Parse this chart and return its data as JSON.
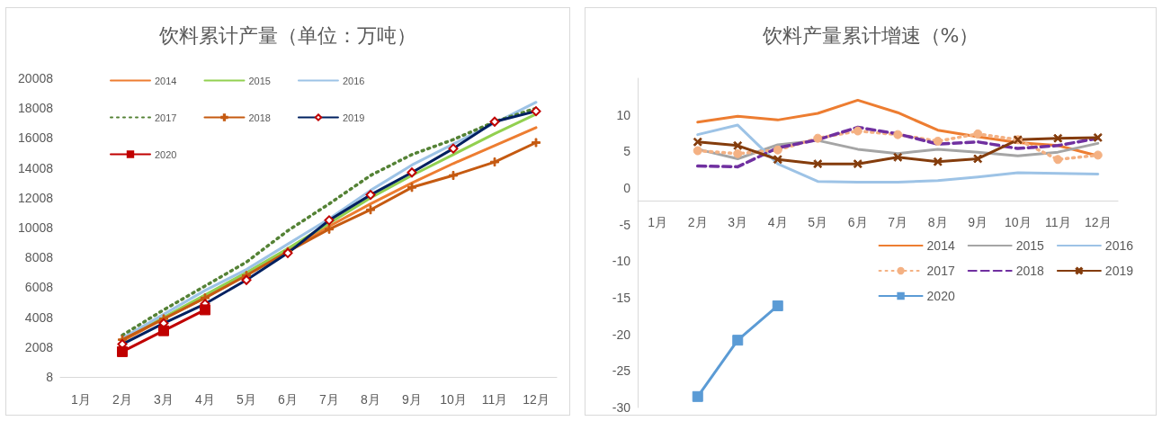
{
  "chart_data": [
    {
      "type": "line",
      "title": "饮料累计产量（单位：万吨）",
      "categories": [
        "1月",
        "2月",
        "3月",
        "4月",
        "5月",
        "6月",
        "7月",
        "8月",
        "9月",
        "10月",
        "11月",
        "12月"
      ],
      "ylim": [
        8,
        20008
      ],
      "yticks": [
        8,
        2008,
        4008,
        6008,
        8008,
        10008,
        12008,
        14008,
        16008,
        18008,
        20008
      ],
      "grid": false,
      "legend": "top left",
      "series": [
        {
          "name": "2014",
          "color": "#ed7d31",
          "marker": "none",
          "line_style": "solid",
          "values": [
            null,
            2400,
            3900,
            5300,
            6900,
            8500,
            10100,
            11600,
            13000,
            14300,
            15500,
            16700
          ]
        },
        {
          "name": "2015",
          "color": "#92d050",
          "marker": "none",
          "line_style": "solid",
          "values": [
            null,
            2500,
            4000,
            5500,
            7000,
            8600,
            10300,
            12000,
            13500,
            14900,
            16300,
            17600
          ]
        },
        {
          "name": "2016",
          "color": "#9dc3e6",
          "marker": "none",
          "line_style": "solid",
          "values": [
            null,
            2600,
            4200,
            5800,
            7200,
            8900,
            10600,
            12500,
            14200,
            15600,
            17000,
            18400
          ]
        },
        {
          "name": "2017",
          "color": "#548235",
          "marker": "none",
          "line_style": "dotted",
          "values": [
            null,
            2800,
            4500,
            6100,
            7700,
            9800,
            11600,
            13500,
            14900,
            15900,
            17100,
            18000
          ]
        },
        {
          "name": "2018",
          "color": "#c55a11",
          "marker": "cross",
          "line_style": "solid",
          "values": [
            null,
            2500,
            3900,
            5300,
            6800,
            8400,
            9900,
            11200,
            12700,
            13500,
            14400,
            15700
          ]
        },
        {
          "name": "2019",
          "color": "#002060",
          "marker": "diamond",
          "line_style": "solid",
          "values": [
            null,
            2200,
            3600,
            4900,
            6500,
            8300,
            10500,
            12200,
            13700,
            15300,
            17100,
            17800
          ]
        },
        {
          "name": "2020",
          "color": "#c00000",
          "marker": "square",
          "line_style": "solid",
          "values": [
            null,
            1700,
            3100,
            4500,
            null,
            null,
            null,
            null,
            null,
            null,
            null,
            null
          ]
        }
      ]
    },
    {
      "type": "line",
      "title": "饮料产量累计增速（%）",
      "categories": [
        "1月",
        "2月",
        "3月",
        "4月",
        "5月",
        "6月",
        "7月",
        "8月",
        "9月",
        "10月",
        "11月",
        "12月"
      ],
      "ylim": [
        -30,
        15
      ],
      "yticks": [
        -30,
        -25,
        -20,
        -15,
        -10,
        -5,
        0,
        5,
        10
      ],
      "grid": false,
      "legend": "bottom right",
      "series": [
        {
          "name": "2014",
          "color": "#ed7d31",
          "marker": "none",
          "line_style": "solid",
          "values": [
            null,
            9.0,
            9.8,
            9.3,
            10.2,
            12.0,
            10.3,
            7.9,
            7.0,
            6.2,
            5.8,
            4.4
          ]
        },
        {
          "name": "2015",
          "color": "#a5a5a5",
          "marker": "none",
          "line_style": "solid",
          "values": [
            null,
            5.3,
            4.0,
            5.9,
            6.5,
            5.3,
            4.7,
            5.3,
            4.9,
            4.4,
            4.9,
            6.1
          ]
        },
        {
          "name": "2016",
          "color": "#9dc3e6",
          "marker": "none",
          "line_style": "solid",
          "values": [
            null,
            7.3,
            8.6,
            3.3,
            0.9,
            0.8,
            0.8,
            1.0,
            1.5,
            2.1,
            2.0,
            1.9
          ]
        },
        {
          "name": "2017",
          "color": "#f4b183",
          "marker": "circle",
          "line_style": "dotted",
          "values": [
            null,
            5.1,
            4.7,
            5.2,
            6.8,
            7.8,
            7.3,
            6.4,
            7.4,
            6.6,
            3.9,
            4.5
          ]
        },
        {
          "name": "2018",
          "color": "#7030a0",
          "marker": "none",
          "line_style": "dashed",
          "values": [
            null,
            3.0,
            2.9,
            5.5,
            6.6,
            8.3,
            7.4,
            6.0,
            6.3,
            5.4,
            5.8,
            6.8
          ]
        },
        {
          "name": "2019",
          "color": "#843c0c",
          "marker": "cross",
          "line_style": "solid",
          "values": [
            null,
            6.3,
            5.8,
            3.9,
            3.3,
            3.3,
            4.2,
            3.6,
            4.0,
            6.6,
            6.8,
            6.9
          ]
        },
        {
          "name": "2020",
          "color": "#5b9bd5",
          "marker": "square",
          "line_style": "solid",
          "values": [
            null,
            -28.5,
            -20.8,
            -16.1,
            null,
            null,
            null,
            null,
            null,
            null,
            null,
            null
          ]
        }
      ]
    }
  ]
}
